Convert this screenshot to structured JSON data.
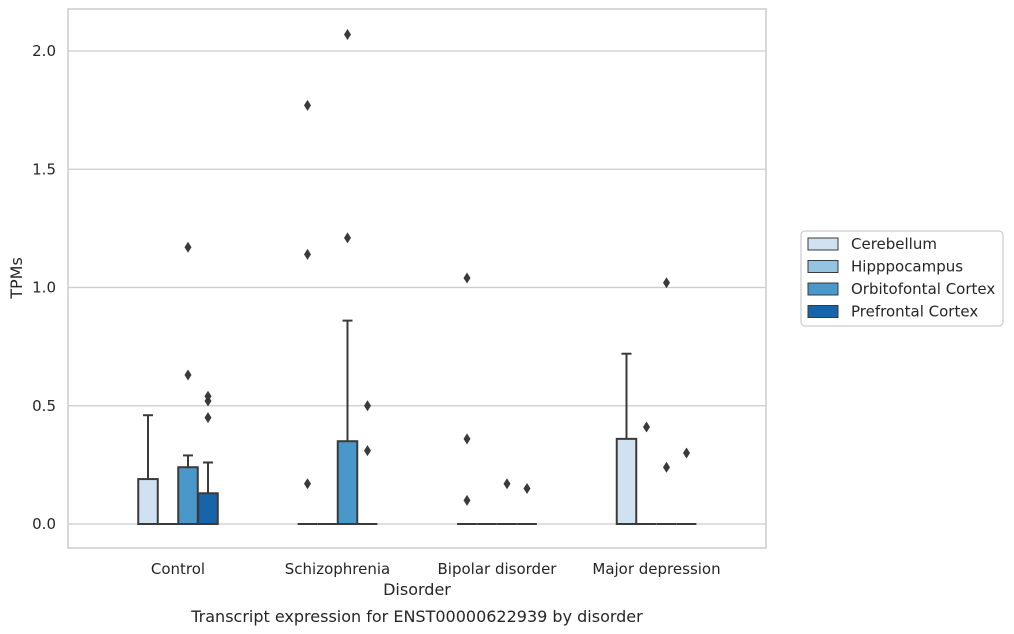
{
  "chart_data": {
    "type": "box",
    "title": "Transcript expression for ENST00000622939 by disorder",
    "xlabel": "Disorder",
    "ylabel": "TPMs",
    "ylim": [
      -0.1,
      2.18
    ],
    "yticks": [
      0.0,
      0.5,
      1.0,
      1.5,
      2.0
    ],
    "ytick_labels": [
      "0.0",
      "0.5",
      "1.0",
      "1.5",
      "2.0"
    ],
    "grid": true,
    "legend_position": "right",
    "categories": [
      "Control",
      "Schizophrenia",
      "Bipolar disorder",
      "Major depression"
    ],
    "series": [
      {
        "name": "Cerebellum",
        "color": "#d0e1f2",
        "boxes": [
          {
            "q1": 0.0,
            "median": 0.0,
            "q3": 0.19,
            "whisker_low": 0.0,
            "whisker_high": 0.46,
            "outliers": []
          },
          {
            "q1": 0.0,
            "median": 0.0,
            "q3": 0.0,
            "whisker_low": 0.0,
            "whisker_high": 0.0,
            "outliers": [
              1.77,
              1.14,
              0.17
            ]
          },
          {
            "q1": 0.0,
            "median": 0.0,
            "q3": 0.0,
            "whisker_low": 0.0,
            "whisker_high": 0.0,
            "outliers": [
              1.04,
              0.36,
              0.1
            ]
          },
          {
            "q1": 0.0,
            "median": 0.0,
            "q3": 0.36,
            "whisker_low": 0.0,
            "whisker_high": 0.72,
            "outliers": []
          }
        ]
      },
      {
        "name": "Hipppocampus",
        "color": "#94c4df",
        "boxes": [
          {
            "q1": 0.0,
            "median": 0.0,
            "q3": 0.0,
            "whisker_low": 0.0,
            "whisker_high": 0.0,
            "outliers": []
          },
          {
            "q1": 0.0,
            "median": 0.0,
            "q3": 0.0,
            "whisker_low": 0.0,
            "whisker_high": 0.0,
            "outliers": []
          },
          {
            "q1": 0.0,
            "median": 0.0,
            "q3": 0.0,
            "whisker_low": 0.0,
            "whisker_high": 0.0,
            "outliers": []
          },
          {
            "q1": 0.0,
            "median": 0.0,
            "q3": 0.0,
            "whisker_low": 0.0,
            "whisker_high": 0.0,
            "outliers": [
              0.41
            ]
          }
        ]
      },
      {
        "name": "Orbitofontal Cortex",
        "color": "#4a98c9",
        "boxes": [
          {
            "q1": 0.0,
            "median": 0.0,
            "q3": 0.24,
            "whisker_low": 0.0,
            "whisker_high": 0.29,
            "outliers": [
              1.17,
              0.63
            ]
          },
          {
            "q1": 0.0,
            "median": 0.0,
            "q3": 0.35,
            "whisker_low": 0.0,
            "whisker_high": 0.86,
            "outliers": [
              2.07,
              1.21
            ]
          },
          {
            "q1": 0.0,
            "median": 0.0,
            "q3": 0.0,
            "whisker_low": 0.0,
            "whisker_high": 0.0,
            "outliers": [
              0.17
            ]
          },
          {
            "q1": 0.0,
            "median": 0.0,
            "q3": 0.0,
            "whisker_low": 0.0,
            "whisker_high": 0.0,
            "outliers": [
              1.02,
              0.24
            ]
          }
        ]
      },
      {
        "name": "Prefrontal Cortex",
        "color": "#1764ab",
        "boxes": [
          {
            "q1": 0.0,
            "median": 0.0,
            "q3": 0.13,
            "whisker_low": 0.0,
            "whisker_high": 0.26,
            "outliers": [
              0.54,
              0.52,
              0.45
            ]
          },
          {
            "q1": 0.0,
            "median": 0.0,
            "q3": 0.0,
            "whisker_low": 0.0,
            "whisker_high": 0.0,
            "outliers": [
              0.5,
              0.31
            ]
          },
          {
            "q1": 0.0,
            "median": 0.0,
            "q3": 0.0,
            "whisker_low": 0.0,
            "whisker_high": 0.0,
            "outliers": [
              0.15
            ]
          },
          {
            "q1": 0.0,
            "median": 0.0,
            "q3": 0.0,
            "whisker_low": 0.0,
            "whisker_high": 0.0,
            "outliers": [
              0.3
            ]
          }
        ]
      }
    ]
  }
}
